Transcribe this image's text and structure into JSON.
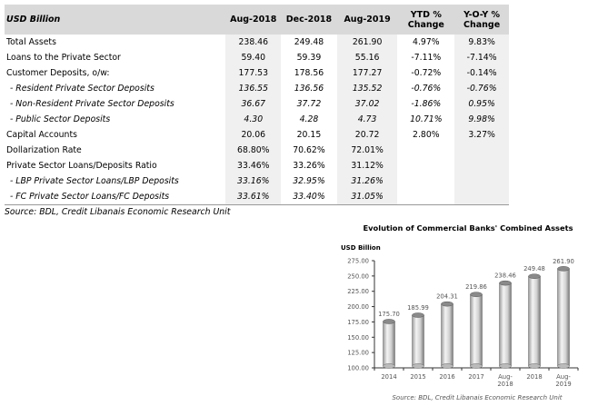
{
  "table": {
    "headers": [
      "USD Billion",
      "Aug-2018",
      "Dec-2018",
      "Aug-2019",
      "YTD % Change",
      "Y-O-Y % Change"
    ],
    "header_lines": [
      [
        "USD Billion"
      ],
      [
        "Aug-2018"
      ],
      [
        "Dec-2018"
      ],
      [
        "Aug-2019"
      ],
      [
        "YTD %",
        "Change"
      ],
      [
        "Y-O-Y %",
        "Change"
      ]
    ],
    "rows": [
      {
        "label": "Total Assets",
        "values": [
          "238.46",
          "249.48",
          "261.90",
          "4.97%",
          "9.83%"
        ],
        "italic": false
      },
      {
        "label": "Loans to the Private Sector",
        "values": [
          "59.40",
          "59.39",
          "55.16",
          "-7.11%",
          "-7.14%"
        ],
        "italic": false
      },
      {
        "label": "Customer Deposits, o/w:",
        "values": [
          "177.53",
          "178.56",
          "177.27",
          "-0.72%",
          "-0.14%"
        ],
        "italic": false
      },
      {
        "label": "- Resident Private Sector Deposits",
        "values": [
          "136.55",
          "136.56",
          "135.52",
          "-0.76%",
          "-0.76%"
        ],
        "italic": true
      },
      {
        "label": "- Non-Resident Private Sector Deposits",
        "values": [
          "36.67",
          "37.72",
          "37.02",
          "-1.86%",
          "0.95%"
        ],
        "italic": true
      },
      {
        "label": "- Public Sector Deposits",
        "values": [
          "4.30",
          "4.28",
          "4.73",
          "10.71%",
          "9.98%"
        ],
        "italic": true
      },
      {
        "label": "Capital Accounts",
        "values": [
          "20.06",
          "20.15",
          "20.72",
          "2.80%",
          "3.27%"
        ],
        "italic": false
      },
      {
        "label": "Dollarization Rate",
        "values": [
          "68.80%",
          "70.62%",
          "72.01%",
          "",
          ""
        ],
        "italic": false
      },
      {
        "label": "Private Sector Loans/Deposits Ratio",
        "values": [
          "33.46%",
          "33.26%",
          "31.12%",
          "",
          ""
        ],
        "italic": false
      },
      {
        "label": "- LBP Private Sector Loans/LBP Deposits",
        "values": [
          "33.16%",
          "32.95%",
          "31.26%",
          "",
          ""
        ],
        "italic": true
      },
      {
        "label": "- FC Private Sector Loans/FC Deposits",
        "values": [
          "33.61%",
          "33.40%",
          "31.05%",
          "",
          ""
        ],
        "italic": true
      }
    ],
    "source": "Source: BDL, Credit Libanais Economic Research Unit"
  },
  "chart_data": {
    "type": "bar",
    "title": "Evolution of Commercial Banks' Combined Assets",
    "ylabel": "USD Billion",
    "xlabel": "",
    "categories": [
      "2014",
      "2015",
      "2016",
      "2017",
      "Aug-2018",
      "2018",
      "Aug-2019"
    ],
    "category_lines": [
      [
        "2014"
      ],
      [
        "2015"
      ],
      [
        "2016"
      ],
      [
        "2017"
      ],
      [
        "Aug-",
        "2018"
      ],
      [
        "2018"
      ],
      [
        "Aug-",
        "2019"
      ]
    ],
    "values": [
      175.7,
      185.99,
      204.31,
      219.86,
      238.46,
      249.48,
      261.9
    ],
    "data_labels": [
      "175.70",
      "185.99",
      "204.31",
      "219.86",
      "238.46",
      "249.48",
      "261.90"
    ],
    "ylim": [
      100,
      275
    ],
    "yticks": [
      "100.00",
      "125.00",
      "150.00",
      "175.00",
      "200.00",
      "225.00",
      "250.00",
      "275.00"
    ],
    "grid": false,
    "legend": "none",
    "source": "Source: BDL, Credit Libanais Economic Research Unit"
  }
}
